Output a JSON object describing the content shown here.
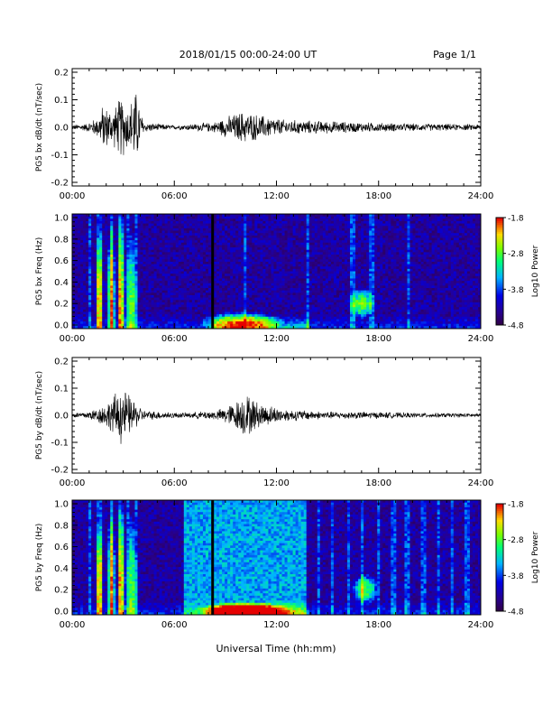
{
  "header": {
    "title": "2018/01/15  00:00-24:00 UT",
    "page": "Page 1/1"
  },
  "x_axis": {
    "label": "Universal Time (hh:mm)",
    "ticks": [
      "00:00",
      "06:00",
      "12:00",
      "18:00",
      "24:00"
    ]
  },
  "colorbar": {
    "label": "Log10 Power",
    "ticks": [
      "-1.8",
      "-2.8",
      "-3.8",
      "-4.8"
    ]
  },
  "chart_data": [
    {
      "type": "line",
      "ylabel": "PG5 bx dB/dt (nT/sec)",
      "ylim": [
        -0.2,
        0.2
      ],
      "yticks": [
        "0.2",
        "0.1",
        "0.0",
        "-0.1",
        "-0.2"
      ],
      "xlim": [
        0,
        24
      ],
      "activity_envelope": [
        {
          "t": 0.0,
          "amp": 0.01
        },
        {
          "t": 0.8,
          "amp": 0.015
        },
        {
          "t": 1.5,
          "amp": 0.04
        },
        {
          "t": 1.8,
          "amp": 0.09
        },
        {
          "t": 2.4,
          "amp": 0.07
        },
        {
          "t": 2.9,
          "amp": 0.13
        },
        {
          "t": 3.3,
          "amp": 0.08
        },
        {
          "t": 3.7,
          "amp": 0.16
        },
        {
          "t": 4.2,
          "amp": 0.02
        },
        {
          "t": 6.0,
          "amp": 0.008
        },
        {
          "t": 8.3,
          "amp": 0.02
        },
        {
          "t": 9.0,
          "amp": 0.04
        },
        {
          "t": 10.0,
          "amp": 0.065
        },
        {
          "t": 11.0,
          "amp": 0.05
        },
        {
          "t": 12.5,
          "amp": 0.03
        },
        {
          "t": 15.0,
          "amp": 0.025
        },
        {
          "t": 17.0,
          "amp": 0.02
        },
        {
          "t": 20.0,
          "amp": 0.015
        },
        {
          "t": 24.0,
          "amp": 0.012
        }
      ]
    },
    {
      "type": "heatmap",
      "ylabel": "PG5 bx Freq (Hz)",
      "ylim": [
        0.0,
        1.0
      ],
      "yticks": [
        "1.0",
        "0.8",
        "0.6",
        "0.4",
        "0.2",
        "0.0"
      ],
      "xlim": [
        0,
        24
      ],
      "zlim": [
        -4.8,
        -1.8
      ],
      "gap_hour": 8.25,
      "vertical_lines": [
        1.0,
        1.6,
        2.3,
        2.8,
        3.3,
        3.8,
        10.2,
        13.8,
        16.5,
        17.6,
        19.8
      ],
      "bursts": [
        {
          "t": 1.6,
          "f": 0.25,
          "width": 0.25,
          "height": 0.6,
          "z": -2.8
        },
        {
          "t": 2.3,
          "f": 0.25,
          "width": 0.25,
          "height": 0.7,
          "z": -2.6
        },
        {
          "t": 2.9,
          "f": 0.25,
          "width": 0.25,
          "height": 0.8,
          "z": -2.5
        },
        {
          "t": 3.5,
          "f": 0.2,
          "width": 0.3,
          "height": 0.7,
          "z": -2.8
        },
        {
          "t": 10.0,
          "f": 0.05,
          "width": 2.5,
          "height": 0.1,
          "z": -2.6
        },
        {
          "t": 17.0,
          "f": 0.22,
          "width": 0.8,
          "height": 0.14,
          "z": -2.8
        }
      ]
    },
    {
      "type": "line",
      "ylabel": "PG5 by dB/dt (nT/sec)",
      "ylim": [
        -0.2,
        0.2
      ],
      "yticks": [
        "0.2",
        "0.1",
        "0.0",
        "-0.1",
        "-0.2"
      ],
      "xlim": [
        0,
        24
      ],
      "activity_envelope": [
        {
          "t": 0.0,
          "amp": 0.01
        },
        {
          "t": 0.8,
          "amp": 0.015
        },
        {
          "t": 1.5,
          "amp": 0.03
        },
        {
          "t": 2.2,
          "amp": 0.06
        },
        {
          "t": 2.9,
          "amp": 0.12
        },
        {
          "t": 3.5,
          "amp": 0.07
        },
        {
          "t": 4.2,
          "amp": 0.02
        },
        {
          "t": 6.5,
          "amp": 0.01
        },
        {
          "t": 8.5,
          "amp": 0.02
        },
        {
          "t": 9.5,
          "amp": 0.05
        },
        {
          "t": 10.2,
          "amp": 0.09
        },
        {
          "t": 11.0,
          "amp": 0.05
        },
        {
          "t": 12.5,
          "amp": 0.025
        },
        {
          "t": 15.0,
          "amp": 0.015
        },
        {
          "t": 17.0,
          "amp": 0.015
        },
        {
          "t": 20.0,
          "amp": 0.01
        },
        {
          "t": 24.0,
          "amp": 0.008
        }
      ]
    },
    {
      "type": "heatmap",
      "ylabel": "PG5 by Freq (Hz)",
      "ylim": [
        0.0,
        1.0
      ],
      "yticks": [
        "1.0",
        "0.8",
        "0.6",
        "0.4",
        "0.2",
        "0.0"
      ],
      "xlim": [
        0,
        24
      ],
      "zlim": [
        -4.8,
        -1.8
      ],
      "gap_hour": 8.25,
      "elevated_band": [
        6.6,
        13.7
      ],
      "vertical_lines": [
        1.0,
        1.6,
        2.3,
        2.8,
        3.3,
        3.8,
        14.5,
        15.3,
        16.2,
        17.0,
        18.0,
        18.9,
        19.7,
        20.6,
        21.5,
        22.3,
        23.2
      ],
      "bursts": [
        {
          "t": 1.6,
          "f": 0.25,
          "width": 0.25,
          "height": 0.6,
          "z": -2.8
        },
        {
          "t": 2.3,
          "f": 0.25,
          "width": 0.25,
          "height": 0.7,
          "z": -2.6
        },
        {
          "t": 2.9,
          "f": 0.25,
          "width": 0.25,
          "height": 0.8,
          "z": -2.5
        },
        {
          "t": 3.5,
          "f": 0.2,
          "width": 0.3,
          "height": 0.7,
          "z": -2.8
        },
        {
          "t": 10.2,
          "f": 0.03,
          "width": 3.0,
          "height": 0.08,
          "z": -2.2
        },
        {
          "t": 17.2,
          "f": 0.22,
          "width": 0.8,
          "height": 0.14,
          "z": -2.9
        }
      ]
    }
  ]
}
